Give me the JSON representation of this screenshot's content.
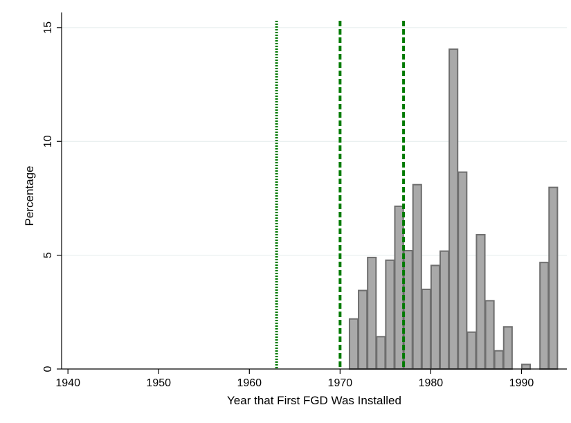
{
  "chart_data": {
    "type": "bar",
    "title": "",
    "xlabel": "Year that First FGD Was Installed",
    "ylabel": "Percentage",
    "xlim": [
      1939.3,
      1995
    ],
    "ylim": [
      0,
      15.3
    ],
    "grid": true,
    "legend": "none",
    "bin_width": 1,
    "x_ticks": [
      {
        "value": 1940,
        "label": "1940"
      },
      {
        "value": 1950,
        "label": "1950"
      },
      {
        "value": 1960,
        "label": "1960"
      },
      {
        "value": 1970,
        "label": "1970"
      },
      {
        "value": 1980,
        "label": "1980"
      },
      {
        "value": 1990,
        "label": "1990"
      }
    ],
    "y_ticks": [
      {
        "value": 0,
        "label": "0"
      },
      {
        "value": 5,
        "label": "5"
      },
      {
        "value": 10,
        "label": "10"
      },
      {
        "value": 15,
        "label": "15"
      }
    ],
    "bins": [
      {
        "start": 1971,
        "value": 2.2
      },
      {
        "start": 1972,
        "value": 3.45
      },
      {
        "start": 1973,
        "value": 4.9
      },
      {
        "start": 1974,
        "value": 1.42
      },
      {
        "start": 1975,
        "value": 4.78
      },
      {
        "start": 1976,
        "value": 7.15
      },
      {
        "start": 1977,
        "value": 5.2
      },
      {
        "start": 1978,
        "value": 8.1
      },
      {
        "start": 1979,
        "value": 3.5
      },
      {
        "start": 1980,
        "value": 4.55
      },
      {
        "start": 1981,
        "value": 5.18
      },
      {
        "start": 1982,
        "value": 14.05
      },
      {
        "start": 1983,
        "value": 8.65
      },
      {
        "start": 1984,
        "value": 1.62
      },
      {
        "start": 1985,
        "value": 5.9
      },
      {
        "start": 1986,
        "value": 3.0
      },
      {
        "start": 1987,
        "value": 0.8
      },
      {
        "start": 1988,
        "value": 1.85
      },
      {
        "start": 1990,
        "value": 0.2
      },
      {
        "start": 1992,
        "value": 4.68
      },
      {
        "start": 1993,
        "value": 7.98
      }
    ],
    "reference_lines": [
      {
        "x": 1963,
        "style": "dotted",
        "color": "#007a00"
      },
      {
        "x": 1970,
        "style": "dashed",
        "color": "#007a00"
      },
      {
        "x": 1977,
        "style": "dashed",
        "color": "#007a00"
      }
    ],
    "colors": {
      "bar_fill": "#a9a9a9",
      "bar_stroke": "#6e6e6e",
      "grid": "#e3ecec",
      "axis": "#000000"
    }
  }
}
